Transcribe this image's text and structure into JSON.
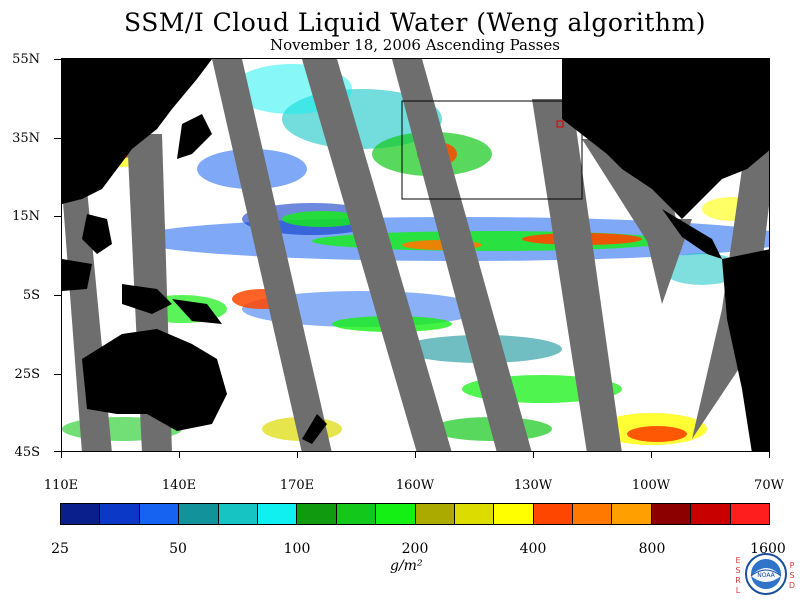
{
  "title": "SSM/I Cloud Liquid Water (Weng algorithm)",
  "subtitle": "November 18, 2006  Ascending Passes",
  "latitude_labels": [
    "55N",
    "35N",
    "15N",
    "5S",
    "25S",
    "45S"
  ],
  "longitude_labels": [
    "110E",
    "140E",
    "170E",
    "160W",
    "130W",
    "100W",
    "70W"
  ],
  "map_extent": {
    "lon": [
      "110E",
      "70W"
    ],
    "lat": [
      "45S",
      "55N"
    ]
  },
  "colorbar": {
    "tick_labels": [
      "25",
      "50",
      "100",
      "200",
      "400",
      "800",
      "1600"
    ],
    "units": "g/m²",
    "colors": [
      "#0a1e8c",
      "#0b38c7",
      "#1563f0",
      "#12929a",
      "#16c4c4",
      "#10f0f0",
      "#109a10",
      "#12c81a",
      "#14f014",
      "#aaaa00",
      "#dcdc00",
      "#ffff00",
      "#ff4600",
      "#ff7800",
      "#ffa000",
      "#8c0000",
      "#c80000",
      "#ff1e1e"
    ]
  },
  "colors": {
    "land": "#000000",
    "missing_data_swath": "#6e6e6e",
    "ocean_clear": "#ffffff"
  },
  "logo": {
    "left_letters": [
      "E",
      "S",
      "R",
      "L"
    ],
    "right_letters": [
      "P",
      "S",
      "D"
    ],
    "center_text": "NOAA"
  }
}
